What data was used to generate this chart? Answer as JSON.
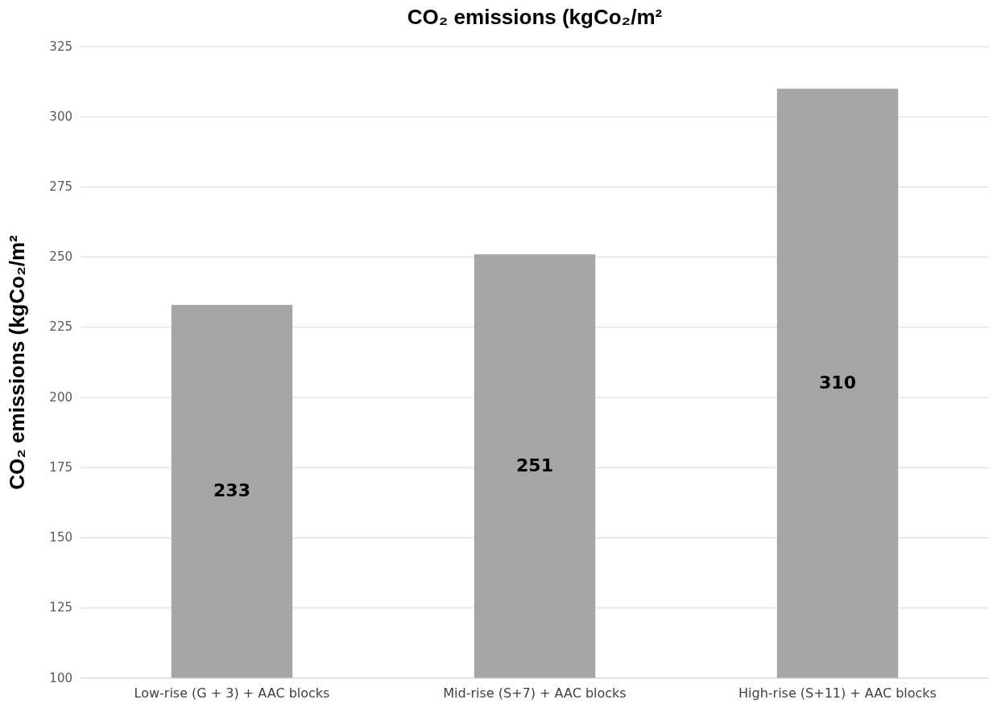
{
  "chart_data": {
    "type": "bar",
    "title": "CO₂ emissions (kgCo₂/m²",
    "ylabel": "CO₂ emissions (kgCo₂/m²",
    "categories": [
      "Low-rise (G + 3) + AAC blocks",
      "Mid-rise (S+7) + AAC blocks",
      "High-rise (S+11) + AAC blocks"
    ],
    "values": [
      233,
      251,
      310
    ],
    "color": "#a5a5a5",
    "ylim": [
      100,
      325
    ],
    "yticks": [
      100,
      125,
      150,
      175,
      200,
      225,
      250,
      275,
      300,
      325
    ],
    "grid": "y",
    "data_labels": true
  }
}
